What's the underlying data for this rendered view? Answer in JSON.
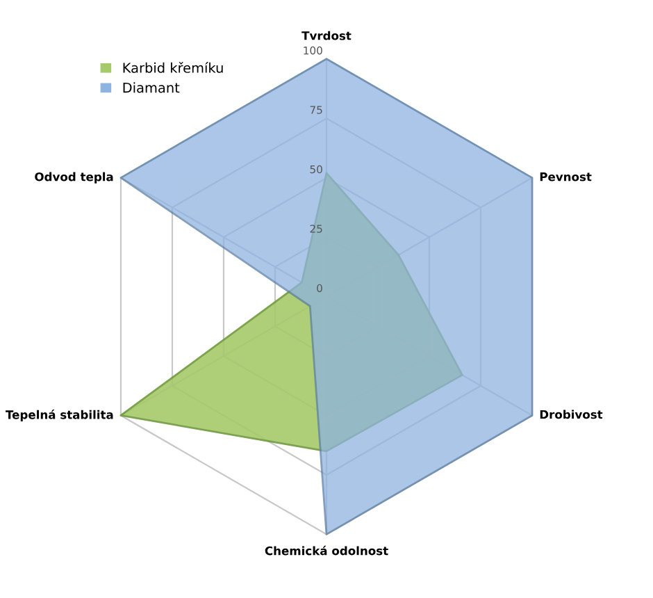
{
  "chart_data": {
    "type": "radar",
    "categories": [
      "Tvrdost",
      "Pevnost",
      "Drobivost",
      "Chemická odolnost",
      "Tepelná stabilita",
      "Odvod tepla"
    ],
    "series": [
      {
        "name": "Karbid křemíku",
        "color": "#a6c96a",
        "values": [
          52,
          35,
          66,
          65,
          100,
          12
        ]
      },
      {
        "name": "Diamant",
        "color": "#8fb3e0",
        "values": [
          100,
          100,
          100,
          100,
          8,
          100
        ]
      }
    ],
    "ylim": [
      0,
      100
    ],
    "yticks": [
      0,
      25,
      50,
      75,
      100
    ],
    "grid": true,
    "legend": "top left"
  }
}
